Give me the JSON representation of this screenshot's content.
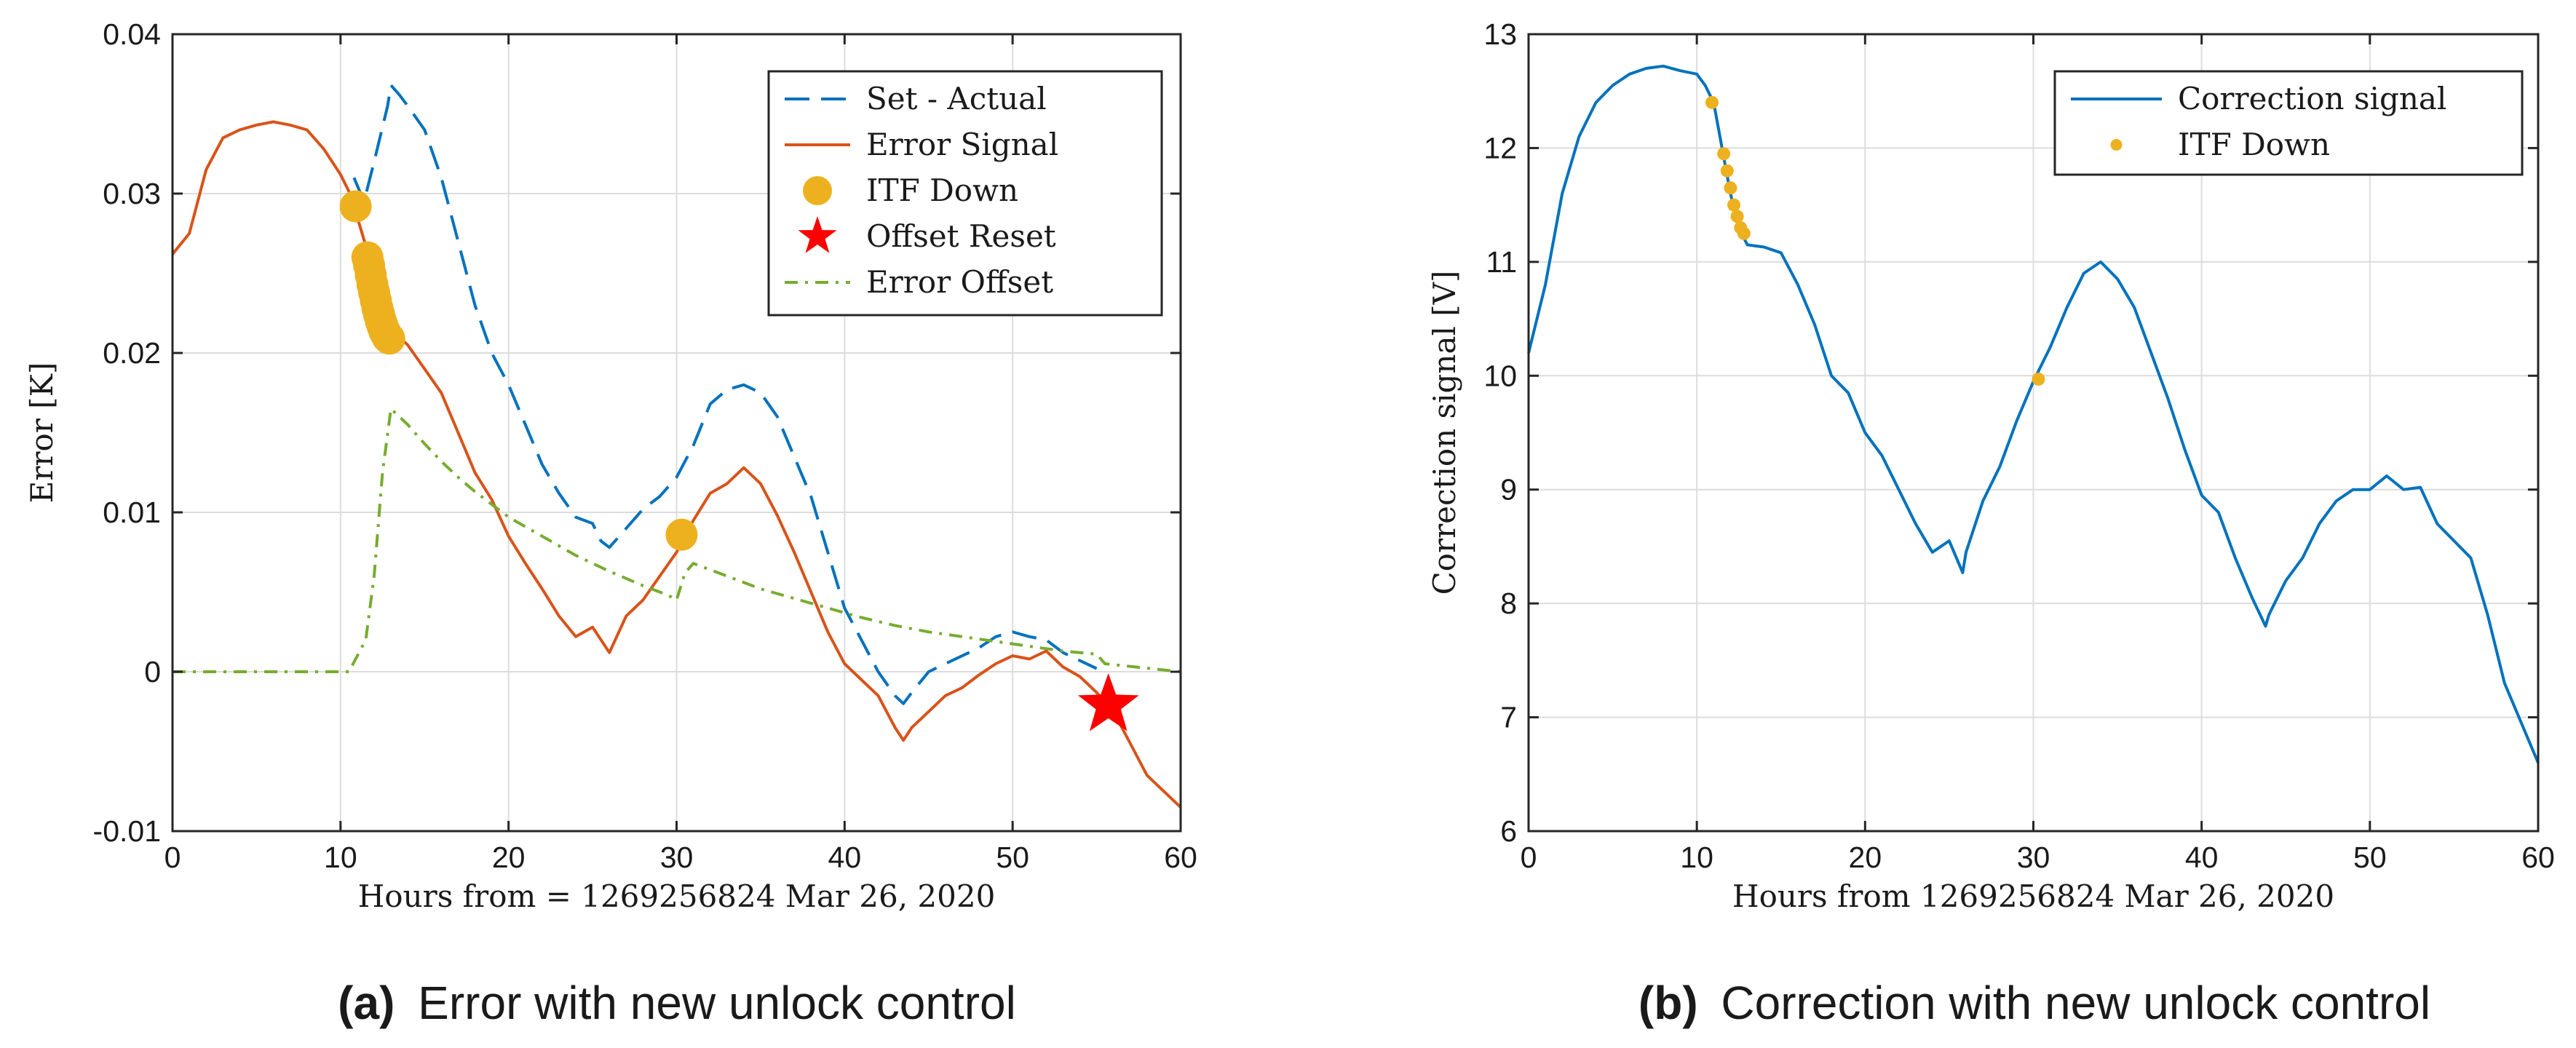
{
  "colors": {
    "blue": "#0072bd",
    "orange": "#d95319",
    "yellow": "#edb120",
    "green": "#77ac30",
    "red": "#ff0000",
    "grid": "#dcdcdc",
    "axis": "#262626"
  },
  "chart_data": [
    {
      "type": "line",
      "id": "a",
      "caption_letter": "(a)",
      "caption_text": "Error with new unlock control",
      "xlabel": "Hours from = 1269256824 Mar 26, 2020",
      "ylabel": "Error [K]",
      "xlim": [
        0,
        60
      ],
      "ylim": [
        -0.01,
        0.04
      ],
      "xticks": [
        0,
        10,
        20,
        30,
        40,
        50,
        60
      ],
      "xtick_labels": [
        "0",
        "10",
        "20",
        "30",
        "40",
        "50",
        "60"
      ],
      "yticks": [
        -0.01,
        0,
        0.01,
        0.02,
        0.03,
        0.04
      ],
      "ytick_labels": [
        "-0.01",
        "0",
        "0.01",
        "0.02",
        "0.03",
        "0.04"
      ],
      "grid": true,
      "legend_position": "top-right",
      "series": [
        {
          "name": "Set - Actual",
          "style": "dashed",
          "color": "#0072bd",
          "x": [
            10.8,
            11.4,
            12,
            12.8,
            13,
            13.5,
            14,
            15,
            16,
            17,
            18,
            19,
            20,
            21,
            22,
            23,
            24,
            25,
            25.5,
            26,
            27,
            28,
            29,
            30,
            31,
            32,
            33,
            34,
            35,
            36,
            37,
            38,
            39,
            40,
            41,
            42,
            43,
            43.5,
            44,
            45,
            46,
            47,
            48,
            49,
            50,
            51,
            52,
            53,
            54,
            55
          ],
          "y": [
            0.031,
            0.0295,
            0.032,
            0.0355,
            0.0368,
            0.0362,
            0.0355,
            0.034,
            0.031,
            0.027,
            0.023,
            0.02,
            0.018,
            0.0155,
            0.013,
            0.0112,
            0.0097,
            0.0093,
            0.0082,
            0.0078,
            0.009,
            0.0102,
            0.011,
            0.0122,
            0.0142,
            0.0168,
            0.0177,
            0.018,
            0.0175,
            0.016,
            0.0135,
            0.011,
            0.0075,
            0.004,
            0.002,
            0.0,
            -0.0015,
            -0.002,
            -0.0013,
            0.0,
            0.0005,
            0.001,
            0.0015,
            0.0022,
            0.0025,
            0.0022,
            0.002,
            0.0012,
            0.0007,
            0.0002
          ]
        },
        {
          "name": "Error Signal",
          "style": "solid",
          "color": "#d95319",
          "x": [
            0,
            1,
            2,
            3,
            4,
            5,
            6,
            7,
            8,
            9,
            10,
            10.8,
            11,
            12,
            12.5,
            13,
            14,
            15,
            16,
            17,
            18,
            19,
            20,
            21,
            22,
            23,
            24,
            25,
            26,
            27,
            28,
            29,
            30,
            31,
            32,
            33,
            34,
            35,
            36,
            37,
            38,
            39,
            40,
            41,
            42,
            43,
            43.5,
            44,
            45,
            46,
            47,
            48,
            49,
            50,
            51,
            52,
            53,
            54,
            55,
            56,
            57,
            58,
            59,
            60
          ],
          "y": [
            0.0262,
            0.0275,
            0.0315,
            0.0335,
            0.034,
            0.0343,
            0.0345,
            0.0343,
            0.034,
            0.0328,
            0.0312,
            0.0295,
            0.0285,
            0.025,
            0.023,
            0.0215,
            0.0205,
            0.019,
            0.0175,
            0.015,
            0.0125,
            0.0108,
            0.0085,
            0.0068,
            0.0052,
            0.0035,
            0.0022,
            0.0028,
            0.0012,
            0.0035,
            0.0045,
            0.006,
            0.0075,
            0.0095,
            0.0112,
            0.0118,
            0.0128,
            0.0118,
            0.0098,
            0.0075,
            0.005,
            0.0025,
            0.0005,
            -0.0005,
            -0.0015,
            -0.0035,
            -0.0043,
            -0.0035,
            -0.0025,
            -0.0015,
            -0.001,
            -0.0002,
            0.0005,
            0.001,
            0.0008,
            0.0013,
            0.0003,
            -0.0003,
            -0.0013,
            -0.0025,
            -0.0045,
            -0.0065,
            -0.0075,
            -0.0085
          ]
        },
        {
          "name": "Error Offset",
          "style": "dashdot",
          "color": "#77ac30",
          "x": [
            0,
            10.5,
            11,
            11.5,
            12,
            12.5,
            13,
            14,
            15,
            16,
            17,
            18,
            19,
            20,
            22,
            24,
            26,
            28,
            29.5,
            30,
            30.5,
            31,
            33,
            35,
            37,
            39,
            41,
            43,
            45,
            47,
            49,
            51,
            53,
            54,
            55,
            55.5,
            60
          ],
          "y": [
            0,
            0.0,
            0.001,
            0.002,
            0.006,
            0.0125,
            0.0165,
            0.0155,
            0.0143,
            0.0132,
            0.0122,
            0.0113,
            0.0105,
            0.0097,
            0.0085,
            0.0073,
            0.0063,
            0.0054,
            0.0048,
            0.0045,
            0.0062,
            0.0068,
            0.006,
            0.0052,
            0.0046,
            0.004,
            0.0034,
            0.0029,
            0.0025,
            0.0022,
            0.0019,
            0.0016,
            0.0013,
            0.0012,
            0.0011,
            0.0005,
            0.0
          ]
        }
      ],
      "markers": [
        {
          "name": "ITF Down",
          "type": "circle",
          "color": "#edb120",
          "x": [
            10.9,
            11.6,
            11.7,
            11.8,
            11.9,
            12.0,
            12.1,
            12.2,
            12.3,
            12.4,
            12.5,
            12.6,
            12.7,
            12.8,
            12.9,
            30.3
          ],
          "y": [
            0.0292,
            0.026,
            0.0255,
            0.0249,
            0.0243,
            0.0238,
            0.0233,
            0.0228,
            0.0224,
            0.022,
            0.0217,
            0.0214,
            0.0212,
            0.021,
            0.0209,
            0.0086
          ]
        },
        {
          "name": "Offset Reset",
          "type": "star",
          "color": "#ff0000",
          "x": [
            55.7
          ],
          "y": [
            -0.0021
          ]
        }
      ],
      "legend": [
        "Set - Actual",
        "Error Signal",
        "ITF Down",
        "Offset Reset",
        "Error Offset"
      ]
    },
    {
      "type": "line",
      "id": "b",
      "caption_letter": "(b)",
      "caption_text": "Correction with new unlock control",
      "xlabel": "Hours from 1269256824 Mar 26, 2020",
      "ylabel": "Correction signal [V]",
      "xlim": [
        0,
        60
      ],
      "ylim": [
        6,
        13
      ],
      "xticks": [
        0,
        10,
        20,
        30,
        40,
        50,
        60
      ],
      "xtick_labels": [
        "0",
        "10",
        "20",
        "30",
        "40",
        "50",
        "60"
      ],
      "yticks": [
        6,
        7,
        8,
        9,
        10,
        11,
        12,
        13
      ],
      "ytick_labels": [
        "6",
        "7",
        "8",
        "9",
        "10",
        "11",
        "12",
        "13"
      ],
      "grid": true,
      "legend_position": "top-right",
      "series": [
        {
          "name": "Correction signal",
          "style": "solid",
          "color": "#0072bd",
          "x": [
            0,
            1,
            2,
            3,
            4,
            5,
            6,
            7,
            8,
            9,
            10,
            10.5,
            11,
            11.5,
            12,
            12.5,
            13,
            14,
            15,
            16,
            17,
            18,
            19,
            20,
            21,
            22,
            23,
            24,
            25,
            25.8,
            26,
            27,
            28,
            29,
            30,
            31,
            32,
            33,
            34,
            35,
            36,
            37,
            38,
            39,
            40,
            41,
            42,
            43,
            43.8,
            44,
            45,
            46,
            47,
            48,
            49,
            50,
            51,
            52,
            53,
            54,
            55,
            56,
            57,
            58,
            59,
            60
          ],
          "y": [
            10.2,
            10.8,
            11.6,
            12.1,
            12.4,
            12.55,
            12.65,
            12.7,
            12.72,
            12.68,
            12.65,
            12.55,
            12.4,
            12.0,
            11.6,
            11.3,
            11.15,
            11.13,
            11.08,
            10.8,
            10.45,
            10.0,
            9.85,
            9.5,
            9.3,
            9.0,
            8.7,
            8.45,
            8.55,
            8.27,
            8.45,
            8.9,
            9.2,
            9.6,
            9.95,
            10.25,
            10.6,
            10.9,
            11.0,
            10.85,
            10.6,
            10.2,
            9.8,
            9.35,
            8.95,
            8.8,
            8.4,
            8.05,
            7.8,
            7.9,
            8.2,
            8.4,
            8.7,
            8.9,
            9.0,
            9.0,
            9.12,
            9.0,
            9.02,
            8.7,
            8.55,
            8.4,
            7.9,
            7.3,
            6.95,
            6.6
          ]
        }
      ],
      "markers": [
        {
          "name": "ITF Down",
          "type": "dot",
          "color": "#edb120",
          "x": [
            10.9,
            11.6,
            11.8,
            12.0,
            12.2,
            12.4,
            12.6,
            12.8,
            30.3
          ],
          "y": [
            12.4,
            11.95,
            11.8,
            11.65,
            11.5,
            11.4,
            11.3,
            11.25,
            9.97
          ]
        }
      ],
      "legend": [
        "Correction signal",
        "ITF Down"
      ]
    }
  ]
}
